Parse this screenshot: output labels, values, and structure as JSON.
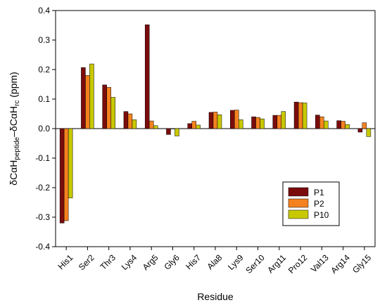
{
  "chart_data": {
    "type": "bar",
    "xlabel": "Residue",
    "ylabel": {
      "base1": "δCαH",
      "sub1": "peptide",
      "mid": "–δCαH",
      "sub2": "rc",
      "tail": " (ppm)"
    },
    "ylim": [
      -0.4,
      0.4
    ],
    "yticks": [
      -0.4,
      -0.3,
      -0.2,
      -0.1,
      0.0,
      0.1,
      0.2,
      0.3,
      0.4
    ],
    "ytick_labels": [
      "-0.4",
      "-0.3",
      "-0.2",
      "-0.1",
      "0.0",
      "0.1",
      "0.2",
      "0.3",
      "0.4"
    ],
    "categories": [
      "His1",
      "Ser2",
      "Thr3",
      "Lys4",
      "Arg5",
      "Gly6",
      "His7",
      "Ala8",
      "Lys9",
      "Ser10",
      "Arg11",
      "Pro12",
      "Val13",
      "Arg14",
      "Gly15"
    ],
    "series": [
      {
        "name": "P1",
        "color": "#7b0c0c",
        "values": [
          -0.32,
          0.207,
          0.148,
          0.058,
          0.352,
          -0.02,
          0.017,
          0.055,
          0.062,
          0.04,
          0.045,
          0.09,
          0.046,
          0.027,
          -0.012
        ]
      },
      {
        "name": "P2",
        "color": "#f58220",
        "values": [
          -0.312,
          0.18,
          0.14,
          0.05,
          0.026,
          0.0,
          0.025,
          0.056,
          0.063,
          0.038,
          0.045,
          0.088,
          0.04,
          0.025,
          0.02
        ]
      },
      {
        "name": "P10",
        "color": "#c8c800",
        "values": [
          -0.235,
          0.219,
          0.106,
          0.03,
          0.01,
          -0.025,
          0.012,
          0.047,
          0.03,
          0.033,
          0.058,
          0.087,
          0.026,
          0.014,
          -0.027
        ]
      }
    ],
    "legend": {
      "placement": "inside-lower-right"
    },
    "grid": false
  }
}
